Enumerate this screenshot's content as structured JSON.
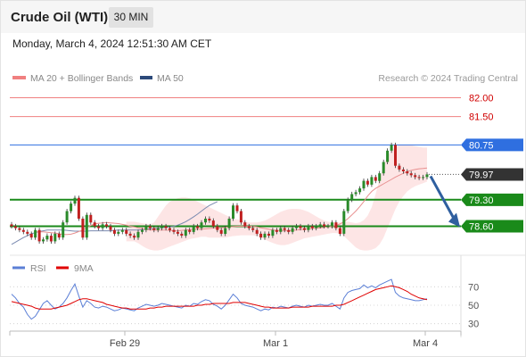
{
  "header": {
    "instrument": "Crude Oil (WTI)",
    "timeframe": "30 MIN"
  },
  "datetime": "Monday, March 4, 2024 12:51:30 AM CET",
  "legend": {
    "ma_bb": {
      "label": "MA 20 + Bollinger Bands",
      "color": "#f08080"
    },
    "ma50": {
      "label": "MA 50",
      "color": "#2c4a7a"
    },
    "credit": "Research © 2024 Trading Central"
  },
  "oscillator_legend": {
    "rsi": {
      "label": "RSI",
      "color": "#5b7fd6"
    },
    "ma9": {
      "label": "9MA",
      "color": "#e00000"
    }
  },
  "colors": {
    "up": "#2a8a2a",
    "down": "#c02020",
    "support": "#1a8a1a",
    "resistance_line": "#f08080",
    "pivot": "#2f6fe0",
    "current": "#333333",
    "arrow": "#2f5f9f"
  },
  "chart_data": [
    {
      "type": "candlestick",
      "title": "",
      "y_ticks": [],
      "ylim": [
        77.95,
        82.2
      ],
      "x_ticks": [
        "Feb 29",
        "Mar 1",
        "Mar 4"
      ],
      "levels": [
        {
          "label": "82.00",
          "value": 82.0,
          "kind": "resistance"
        },
        {
          "label": "81.50",
          "value": 81.5,
          "kind": "resistance"
        },
        {
          "label": "80.75",
          "value": 80.75,
          "kind": "pivot"
        },
        {
          "label": "79.97",
          "value": 79.97,
          "kind": "current"
        },
        {
          "label": "79.30",
          "value": 79.3,
          "kind": "support"
        },
        {
          "label": "78.60",
          "value": 78.6,
          "kind": "support"
        }
      ],
      "closes": [
        78.6,
        78.55,
        78.5,
        78.45,
        78.4,
        78.3,
        78.5,
        78.2,
        78.25,
        78.35,
        78.2,
        78.4,
        78.3,
        78.7,
        79.0,
        79.2,
        79.35,
        78.8,
        78.3,
        78.9,
        78.7,
        78.6,
        78.55,
        78.65,
        78.6,
        78.5,
        78.4,
        78.45,
        78.5,
        78.4,
        78.35,
        78.3,
        78.45,
        78.5,
        78.6,
        78.55,
        78.5,
        78.55,
        78.6,
        78.55,
        78.5,
        78.45,
        78.4,
        78.35,
        78.5,
        78.45,
        78.6,
        78.55,
        78.7,
        78.8,
        78.75,
        78.6,
        78.5,
        78.4,
        78.55,
        78.8,
        79.15,
        79.0,
        78.7,
        78.6,
        78.55,
        78.5,
        78.4,
        78.3,
        78.4,
        78.35,
        78.5,
        78.45,
        78.55,
        78.5,
        78.45,
        78.55,
        78.6,
        78.55,
        78.5,
        78.6,
        78.55,
        78.6,
        78.65,
        78.6,
        78.6,
        78.7,
        78.55,
        78.4,
        79.0,
        79.3,
        79.45,
        79.5,
        79.6,
        79.8,
        79.7,
        79.9,
        79.8,
        80.0,
        80.3,
        80.6,
        80.75,
        80.2,
        80.1,
        80.05,
        80.0,
        79.95,
        79.9,
        79.88,
        79.9,
        79.97
      ],
      "ma20": [
        78.45,
        78.45,
        78.45,
        78.44,
        78.43,
        78.42,
        78.4,
        78.38,
        78.38,
        78.39,
        78.42,
        78.46,
        78.5,
        78.56,
        78.62,
        78.66,
        78.68,
        78.69,
        78.7,
        78.69,
        78.68,
        78.67,
        78.65,
        78.63,
        78.6,
        78.58,
        78.56,
        78.54,
        78.52,
        78.5,
        78.5,
        78.5,
        78.5,
        78.5,
        78.49,
        78.48,
        78.48,
        78.49,
        78.5,
        78.51,
        78.52,
        78.52,
        78.52,
        78.53,
        78.54,
        78.55,
        78.55,
        78.56,
        78.57,
        78.58,
        78.59,
        78.6,
        78.6,
        78.6,
        78.6,
        78.6,
        78.58,
        78.56,
        78.54,
        78.52,
        78.5,
        78.49,
        78.48,
        78.48,
        78.48,
        78.49,
        78.5,
        78.51,
        78.52,
        78.53,
        78.54,
        78.55,
        78.56,
        78.57,
        78.58,
        78.6,
        78.62,
        78.66,
        78.72,
        78.8,
        78.9,
        79.0,
        79.12,
        79.25,
        79.4,
        79.52,
        79.6,
        79.66,
        79.72,
        79.78,
        79.84,
        79.9,
        79.95,
        80.0,
        80.05,
        80.08,
        80.1,
        80.12,
        80.13,
        80.14
      ],
      "bb_upper": [
        78.72,
        78.72,
        78.72,
        78.7,
        78.68,
        78.66,
        78.65,
        78.7,
        78.85,
        79.0,
        79.15,
        79.25,
        79.3,
        79.34,
        79.36,
        79.36,
        79.34,
        79.3,
        79.25,
        79.2,
        79.15,
        79.1,
        79.05,
        79.0,
        78.95,
        78.9,
        78.85,
        78.8,
        78.78,
        78.75,
        78.72,
        78.7,
        78.7,
        78.7,
        78.72,
        78.75,
        78.8,
        78.86,
        78.92,
        78.98,
        79.02,
        79.05,
        79.06,
        79.06,
        79.05,
        79.02,
        78.98,
        78.92,
        78.86,
        78.8,
        78.75,
        78.72,
        78.7,
        78.7,
        78.7,
        78.72,
        78.72,
        78.7,
        78.68,
        78.7,
        78.76,
        78.88,
        79.1,
        79.45,
        79.85,
        80.2,
        80.45,
        80.6,
        80.7,
        80.74,
        80.76,
        80.76,
        80.74,
        80.72,
        80.7,
        80.68,
        80.68
      ],
      "bb_lower": [
        78.2,
        78.2,
        78.2,
        78.15,
        78.08,
        78.02,
        77.98,
        77.96,
        77.96,
        77.98,
        78.02,
        78.06,
        78.1,
        78.14,
        78.18,
        78.22,
        78.26,
        78.28,
        78.3,
        78.32,
        78.32,
        78.3,
        78.3,
        78.3,
        78.3,
        78.3,
        78.32,
        78.34,
        78.35,
        78.36,
        78.36,
        78.36,
        78.36,
        78.34,
        78.3,
        78.25,
        78.2,
        78.16,
        78.12,
        78.1,
        78.1,
        78.12,
        78.16,
        78.2,
        78.24,
        78.28,
        78.3,
        78.32,
        78.34,
        78.36,
        78.38,
        78.4,
        78.42,
        78.42,
        78.4,
        78.34,
        78.24,
        78.14,
        78.04,
        77.98,
        77.96,
        77.96,
        77.98,
        78.02,
        78.12,
        78.3,
        78.55,
        78.8,
        79.05,
        79.25,
        79.4,
        79.52,
        79.6,
        79.66,
        79.7,
        79.74,
        79.78
      ],
      "ma50": [
        78.12,
        78.18,
        78.24,
        78.3,
        78.35,
        78.4,
        78.43,
        78.46,
        78.48,
        78.5,
        78.5,
        78.5,
        78.5,
        78.5,
        78.49,
        78.48,
        78.47,
        78.47,
        78.47,
        78.47,
        78.48,
        78.48,
        78.48,
        78.48,
        78.48,
        78.48,
        78.49,
        78.5,
        78.5,
        78.5,
        78.5,
        78.5,
        78.5,
        78.51,
        78.52,
        78.53,
        78.54,
        78.55,
        78.56,
        78.57,
        78.58,
        78.6,
        78.63,
        78.67,
        78.72,
        78.78,
        78.85,
        78.92,
        79.0,
        79.08,
        79.15,
        79.2,
        79.25
      ]
    },
    {
      "type": "line",
      "title": "",
      "y_ticks": [
        "70",
        "50",
        "30"
      ],
      "ylim": [
        22,
        80
      ],
      "series": [
        {
          "name": "RSI",
          "values": [
            62,
            58,
            52,
            48,
            40,
            35,
            38,
            45,
            52,
            55,
            50,
            46,
            48,
            52,
            58,
            66,
            73,
            60,
            48,
            55,
            52,
            48,
            47,
            49,
            48,
            46,
            44,
            45,
            47,
            46,
            45,
            44,
            47,
            49,
            51,
            50,
            49,
            50,
            52,
            51,
            50,
            49,
            48,
            47,
            50,
            49,
            52,
            51,
            54,
            56,
            55,
            51,
            49,
            46,
            50,
            56,
            62,
            58,
            52,
            50,
            49,
            48,
            46,
            44,
            46,
            45,
            48,
            47,
            49,
            48,
            47,
            49,
            50,
            49,
            48,
            50,
            49,
            50,
            51,
            50,
            50,
            52,
            49,
            46,
            58,
            64,
            66,
            67,
            68,
            72,
            69,
            71,
            69,
            72,
            74,
            76,
            78,
            64,
            60,
            58,
            57,
            56,
            55,
            55,
            56,
            57
          ]
        },
        {
          "name": "9MA",
          "values": [
            54,
            53,
            52,
            51,
            50,
            49,
            47,
            46,
            46,
            46,
            46,
            47,
            48,
            49,
            50,
            52,
            54,
            56,
            57,
            57,
            56,
            55,
            54,
            53,
            51,
            50,
            49,
            48,
            47,
            47,
            46,
            46,
            46,
            46,
            46,
            47,
            47,
            48,
            48,
            49,
            49,
            49,
            49,
            49,
            49,
            49,
            49,
            50,
            50,
            51,
            51,
            52,
            52,
            52,
            52,
            52,
            53,
            53,
            53,
            53,
            52,
            51,
            50,
            49,
            48,
            48,
            47,
            47,
            47,
            47,
            47,
            48,
            48,
            48,
            48,
            48,
            49,
            49,
            49,
            49,
            49,
            49,
            50,
            50,
            51,
            53,
            55,
            57,
            59,
            61,
            63,
            65,
            67,
            68,
            69,
            70,
            71,
            70,
            69,
            67,
            65,
            62,
            60,
            58,
            57,
            56
          ]
        }
      ]
    }
  ]
}
